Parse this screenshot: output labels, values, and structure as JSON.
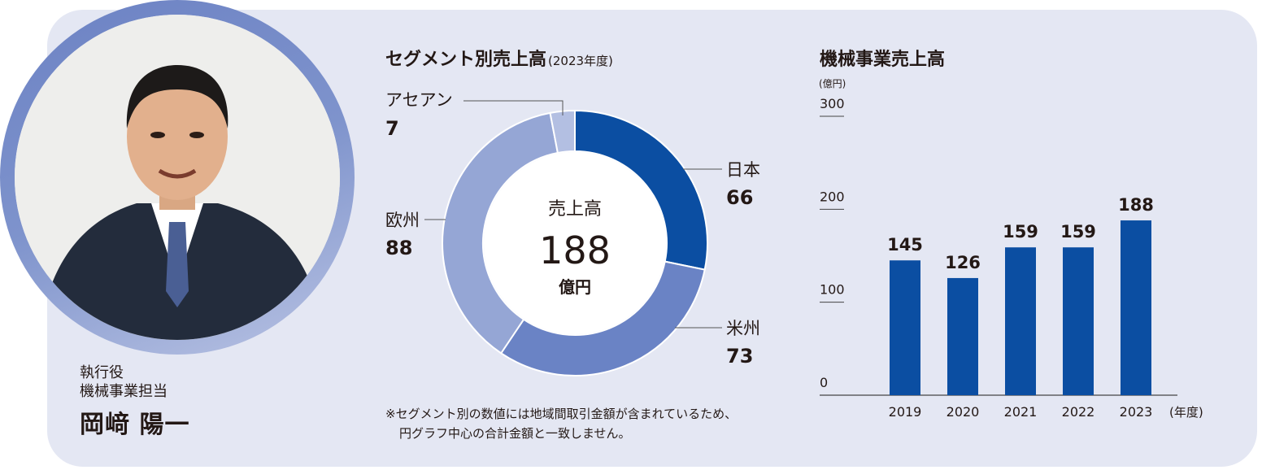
{
  "person": {
    "role_line1": "執行役",
    "role_line2": "機械事業担当",
    "name": "岡﨑 陽一"
  },
  "segment_chart": {
    "title": "セグメント別売上高",
    "subtitle": "(2023年度)",
    "center_label": "売上高",
    "center_value": "188",
    "center_unit": "億円",
    "note_line1": "※セグメント別の数値には地域間取引金額が含まれているため、",
    "note_line2": "円グラフ中心の合計金額と一致しません。"
  },
  "bar_chart": {
    "title": "機械事業売上高",
    "unit_label": "(億円)",
    "x_unit_label": "(年度)"
  },
  "colors": {
    "panel": "#e4e7f3",
    "japan": "#0b4ea2",
    "americas": "#6a83c5",
    "europe": "#95a6d5",
    "asean": "#b3bfe2",
    "bar": "#0b4ea2"
  },
  "chart_data": [
    {
      "type": "pie",
      "title": "セグメント別売上高",
      "categories": [
        "日本",
        "米州",
        "欧州",
        "アセアン"
      ],
      "values": [
        66,
        73,
        88,
        7
      ],
      "center_total": 188
    },
    {
      "type": "bar",
      "title": "機械事業売上高",
      "categories": [
        "2019",
        "2020",
        "2021",
        "2022",
        "2023"
      ],
      "values": [
        145,
        126,
        159,
        159,
        188
      ],
      "ylabel": "(億円)",
      "xlabel": "(年度)",
      "ylim": [
        0,
        300
      ],
      "yticks": [
        0,
        100,
        200,
        300
      ]
    }
  ]
}
